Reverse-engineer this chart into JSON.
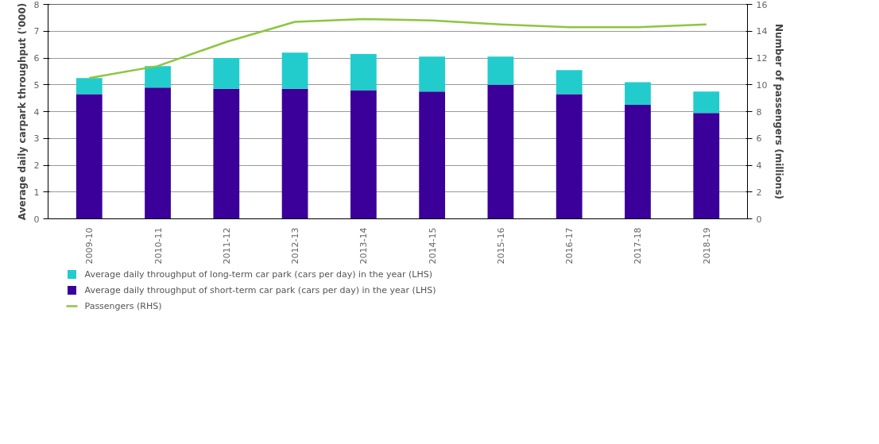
{
  "chart_data": {
    "type": "bar",
    "stacked": true,
    "categories": [
      "2009-10",
      "2010-11",
      "2011-12",
      "2012-13",
      "2013-14",
      "2014-15",
      "2015-16",
      "2016-17",
      "2017-18",
      "2018-19"
    ],
    "ylabel": "Average daily carpark throughput ('000)",
    "y2label": "Number of passengers (millions)",
    "ylim": [
      0,
      8
    ],
    "yticks": [
      0,
      1,
      2,
      3,
      4,
      5,
      6,
      7,
      8
    ],
    "y2lim": [
      0,
      16
    ],
    "y2ticks": [
      0,
      2,
      4,
      6,
      8,
      10,
      12,
      14,
      16
    ],
    "grid": "y",
    "legend": "bottom",
    "series": [
      {
        "name": "Average daily throughput of short-term car park (cars per day) in the year (LHS)",
        "color": "#3a0099",
        "values": [
          4.65,
          4.9,
          4.85,
          4.85,
          4.8,
          4.75,
          5.0,
          4.65,
          4.25,
          3.95
        ]
      },
      {
        "name": "Average daily throughput of long-term car park (cars per day) in the year (LHS)",
        "color": "#22cccc",
        "values": [
          0.6,
          0.8,
          1.15,
          1.35,
          1.35,
          1.3,
          1.05,
          0.9,
          0.85,
          0.8
        ]
      },
      {
        "name": "Passengers (RHS)",
        "type": "line",
        "axis": "y2",
        "color": "#8cc63f",
        "values": [
          10.5,
          11.4,
          13.2,
          14.7,
          14.9,
          14.8,
          14.5,
          14.3,
          14.3,
          14.5
        ]
      }
    ]
  }
}
